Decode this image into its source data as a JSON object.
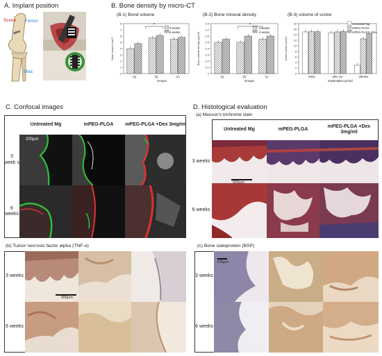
{
  "panelA": {
    "title": "A. Implant position",
    "labels": {
      "screw": "Screw",
      "femur": "Femur",
      "tibia": "Tibia"
    }
  },
  "panelB": {
    "title": "B. Bone density by micro-CT",
    "sub1": "(B-1) Bond volume",
    "sub2": "(B-2) Bone mineral density",
    "sub3": "(B-3) volume of screw",
    "b1_ylabel": "Bone volume (mm³)",
    "b2_ylabel": "Bone mineral density (g/cm³)",
    "b3_ylabel": "Screw volume (mm³)",
    "b1_xlabel": "Groups",
    "b2_xlabel": "Groups",
    "b3_xlabel": "Implantation period",
    "b1_legend": [
      "3 weeks",
      "6 weeks"
    ],
    "b2_legend": [
      "3 weeks",
      "6 weeks"
    ],
    "b3_legend": [
      "Untreated Mg",
      "mPEG-PLGA",
      "mPEG-PLGA +Dex"
    ],
    "star": "*"
  },
  "chart_data": [
    {
      "type": "bar",
      "title": "(B-1) Bond volume",
      "categories": [
        "(a)",
        "(b)",
        "(c)"
      ],
      "series": [
        {
          "name": "3 weeks",
          "values": [
            4.0,
            5.7,
            5.5
          ]
        },
        {
          "name": "6 weeks",
          "values": [
            4.8,
            6.1,
            5.8
          ]
        }
      ],
      "xlabel": "Groups",
      "ylabel": "Bone volume (mm³)",
      "ylim": [
        0,
        8
      ],
      "yticks": [
        0,
        1,
        2,
        3,
        4,
        5,
        6,
        7,
        8
      ]
    },
    {
      "type": "bar",
      "title": "(B-2) Bone mineral density",
      "categories": [
        "(a)",
        "(b)",
        "(c)"
      ],
      "series": [
        {
          "name": "3 weeks",
          "values": [
            0.5,
            0.5,
            0.55
          ]
        },
        {
          "name": "6 weeks",
          "values": [
            0.55,
            0.6,
            0.6
          ]
        }
      ],
      "xlabel": "Groups",
      "ylabel": "Bone mineral density (g/cm³)",
      "ylim": [
        0.0,
        0.8
      ],
      "yticks": [
        0.0,
        0.1,
        0.2,
        0.3,
        0.4,
        0.5,
        0.6,
        0.7,
        0.8
      ]
    },
    {
      "type": "bar",
      "title": "(B-3) volume of screw",
      "categories": [
        "initial",
        "after 3w",
        "after6w"
      ],
      "series": [
        {
          "name": "Untreated Mg",
          "values": [
            15.0,
            14.7,
            3.0
          ]
        },
        {
          "name": "mPEG-PLGA",
          "values": [
            15.1,
            15.0,
            12.5
          ]
        },
        {
          "name": "mPEG-PLGA +Dex",
          "values": [
            15.1,
            15.2,
            14.4
          ]
        }
      ],
      "xlabel": "Implantation period",
      "ylabel": "Screw volume (mm³)",
      "ylim": [
        0,
        18
      ],
      "yticks": [
        0,
        2,
        4,
        6,
        8,
        10,
        12,
        14,
        16,
        18
      ]
    }
  ],
  "panelC": {
    "title": "C. Confocal images",
    "cols": [
      "Untreated Mg",
      "mPEG-PLGA",
      "mPEG-PLGA +Dex 3mg/ml"
    ],
    "rows": [
      "3 week s",
      "6 weeks"
    ],
    "scale": "200μm"
  },
  "panelD": {
    "title": "D. Histological evaluation",
    "sub": "(a) Masson's trichrome stain",
    "cols": [
      "Untreated Mg",
      "mPEG-PLGA",
      "mPEG-PLGA +Dex 3mg/ml"
    ],
    "rows": [
      "3 weeks",
      "6 weeks"
    ],
    "scale": "500μm"
  },
  "panelTNF": {
    "title": "(b) Tumor necrosis factor alpha (TNF-α)",
    "rows": [
      "3 weeks",
      "6 weeks"
    ],
    "scale": "500μm"
  },
  "panelBSP": {
    "title": "(c) Bone sialoprotein (BSP)",
    "rows": [
      "3 weeks",
      "6 weeks"
    ],
    "scale": "100μm"
  }
}
